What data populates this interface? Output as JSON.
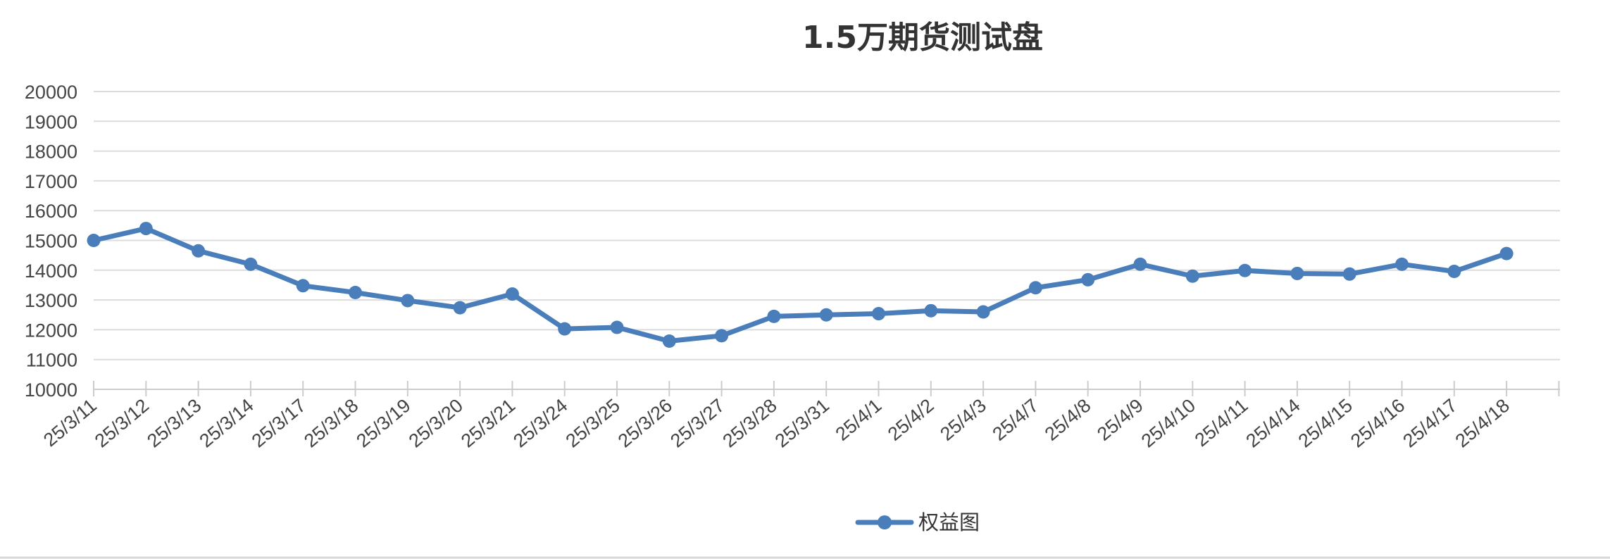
{
  "chart_data": {
    "type": "line",
    "title": "1.5万期货测试盘",
    "xlabel": "",
    "ylabel": "",
    "ylim": [
      10000,
      20000
    ],
    "yticks": [
      10000,
      11000,
      12000,
      13000,
      14000,
      15000,
      16000,
      17000,
      18000,
      19000,
      20000
    ],
    "grid": true,
    "legend_position": "bottom",
    "categories": [
      "25/3/11",
      "25/3/12",
      "25/3/13",
      "25/3/14",
      "25/3/17",
      "25/3/18",
      "25/3/19",
      "25/3/20",
      "25/3/21",
      "25/3/24",
      "25/3/25",
      "25/3/26",
      "25/3/27",
      "25/3/28",
      "25/3/31",
      "25/4/1",
      "25/4/2",
      "25/4/3",
      "25/4/7",
      "25/4/8",
      "25/4/9",
      "25/4/10",
      "25/4/11",
      "25/4/14",
      "25/4/15",
      "25/4/16",
      "25/4/17",
      "25/4/18"
    ],
    "series": [
      {
        "name": "权益图",
        "color": "#4a7ebb",
        "values": [
          15000,
          15400,
          14650,
          14200,
          13480,
          13250,
          12980,
          12740,
          13200,
          12030,
          12080,
          11620,
          11800,
          12450,
          12500,
          12540,
          12640,
          12600,
          13410,
          13680,
          14200,
          13800,
          13990,
          13890,
          13870,
          14200,
          13960,
          14560
        ]
      }
    ]
  }
}
